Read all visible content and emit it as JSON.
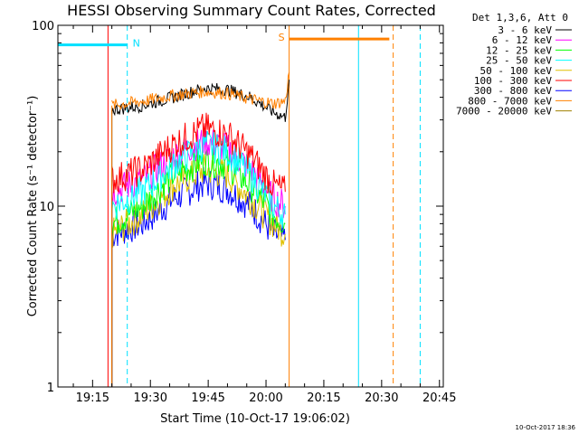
{
  "chart_data": {
    "type": "line",
    "title": "HESSI Observing Summary Count Rates, Corrected",
    "ylabel": "Corrected Count Rate (s⁻¹ detector⁻¹)",
    "xlabel": "Start Time (10-Oct-17 19:06:02)",
    "yscale": "log",
    "ylim": [
      1,
      100
    ],
    "xlim": [
      "19:06",
      "20:46"
    ],
    "ytick_labels": [
      "1",
      "10",
      "100"
    ],
    "xtick_labels": [
      "19:15",
      "19:30",
      "19:45",
      "20:00",
      "20:15",
      "20:30",
      "20:45"
    ],
    "legend_header": "Det 1,3,6, Att 0",
    "legend_placement": "right",
    "footer_date": "10-Oct-2017 18:36",
    "series": [
      {
        "name": "3 - 6 keV",
        "color": "#000000",
        "x": [
          "19:20",
          "19:28",
          "19:36",
          "19:44",
          "19:50",
          "19:56",
          "20:02",
          "20:05",
          "20:06"
        ],
        "values": [
          34,
          36,
          40,
          45,
          44,
          40,
          33,
          31,
          50
        ]
      },
      {
        "name": "6 - 12 keV",
        "color": "#ff00ff",
        "x": [
          "19:20",
          "19:28",
          "19:36",
          "19:44",
          "19:50",
          "19:56",
          "20:02",
          "20:05"
        ],
        "values": [
          12,
          14,
          19,
          23,
          21,
          16,
          11,
          10
        ]
      },
      {
        "name": "12 - 25 keV",
        "color": "#00ff00",
        "x": [
          "19:20",
          "19:28",
          "19:36",
          "19:44",
          "19:50",
          "19:56",
          "20:02",
          "20:05"
        ],
        "values": [
          8,
          10,
          15,
          18,
          17,
          13,
          9,
          8
        ]
      },
      {
        "name": "25 - 50 keV",
        "color": "#00ffff",
        "x": [
          "19:20",
          "19:28",
          "19:36",
          "19:44",
          "19:50",
          "19:56",
          "20:02",
          "20:05"
        ],
        "values": [
          10,
          12,
          17,
          22,
          20,
          15,
          10,
          9
        ]
      },
      {
        "name": "50 - 100 keV",
        "color": "#e0c000",
        "x": [
          "19:20",
          "19:28",
          "19:36",
          "19:44",
          "19:50",
          "19:56",
          "20:02",
          "20:05"
        ],
        "values": [
          7,
          9,
          13,
          16,
          15,
          11,
          8,
          7
        ]
      },
      {
        "name": "100 - 300 keV",
        "color": "#ff0000",
        "x": [
          "19:20",
          "19:28",
          "19:36",
          "19:44",
          "19:50",
          "19:56",
          "20:02",
          "20:05"
        ],
        "values": [
          14,
          16,
          22,
          27,
          25,
          19,
          13,
          12
        ]
      },
      {
        "name": "300 - 800 keV",
        "color": "#0000ff",
        "x": [
          "19:20",
          "19:28",
          "19:36",
          "19:44",
          "19:50",
          "19:56",
          "20:02",
          "20:05"
        ],
        "values": [
          7,
          8,
          11,
          13.5,
          12.5,
          10,
          7,
          6.5
        ]
      },
      {
        "name": "800 - 7000 keV",
        "color": "#ff8000",
        "x": [
          "19:20",
          "19:28",
          "19:36",
          "19:44",
          "19:50",
          "19:56",
          "20:02",
          "20:05",
          "20:06"
        ],
        "values": [
          36,
          38,
          41,
          43,
          42,
          39,
          37,
          38,
          55
        ]
      },
      {
        "name": "7000 - 20000 keV",
        "color": "#a08000",
        "x": [],
        "values": []
      }
    ],
    "annotations": [
      {
        "label": "N",
        "color": "#00e0ff",
        "bar_x": [
          "19:06",
          "19:24"
        ],
        "bar_y": 78
      },
      {
        "label": "S",
        "color": "#ff8000",
        "bar_x": [
          "20:06",
          "20:32"
        ],
        "bar_y": 84
      }
    ],
    "vertical_lines": [
      {
        "x": "19:06",
        "color": "#00e0ff",
        "style": "solid"
      },
      {
        "x": "19:24",
        "color": "#00e0ff",
        "style": "dashed"
      },
      {
        "x": "19:19",
        "color": "#ff0000",
        "style": "solid"
      },
      {
        "x": "20:06",
        "color": "#ff8000",
        "style": "solid"
      },
      {
        "x": "20:24",
        "color": "#00e0ff",
        "style": "solid"
      },
      {
        "x": "20:33",
        "color": "#ff8000",
        "style": "dashed"
      },
      {
        "x": "20:40",
        "color": "#00e0ff",
        "style": "dashed"
      }
    ]
  }
}
